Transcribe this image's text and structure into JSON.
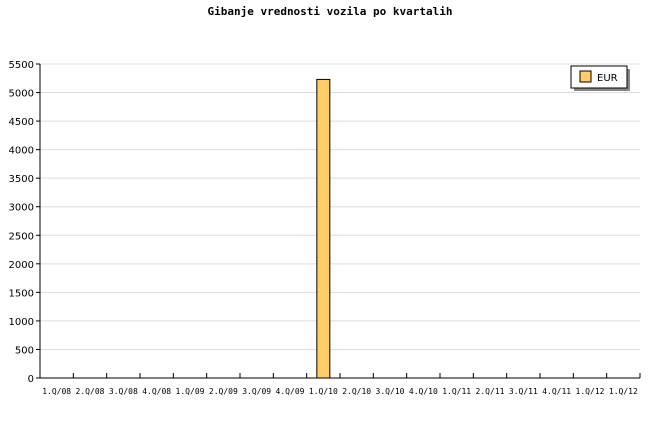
{
  "chart_data": {
    "type": "bar",
    "title": "Gibanje vrednosti vozila po kvartalih",
    "categories": [
      "1.Q/08",
      "2.Q/08",
      "3.Q/08",
      "4.Q/08",
      "1.Q/09",
      "2.Q/09",
      "3.Q/09",
      "4.Q/09",
      "1.Q/10",
      "2.Q/10",
      "3.Q/10",
      "4.Q/10",
      "1.Q/11",
      "2.Q/11",
      "3.Q/11",
      "4.Q/11",
      "1.Q/12",
      "1.Q/12"
    ],
    "series": [
      {
        "name": "EUR",
        "color": "#ffcc66",
        "values": [
          0,
          0,
          0,
          0,
          0,
          0,
          0,
          0,
          5230,
          0,
          0,
          0,
          0,
          0,
          0,
          0,
          0,
          0
        ]
      }
    ],
    "ylim": [
      0,
      5500
    ],
    "yticks": [
      0,
      500,
      1000,
      1500,
      2000,
      2500,
      3000,
      3500,
      4000,
      4500,
      5000,
      5500
    ],
    "grid": true,
    "legend": "top-right"
  }
}
